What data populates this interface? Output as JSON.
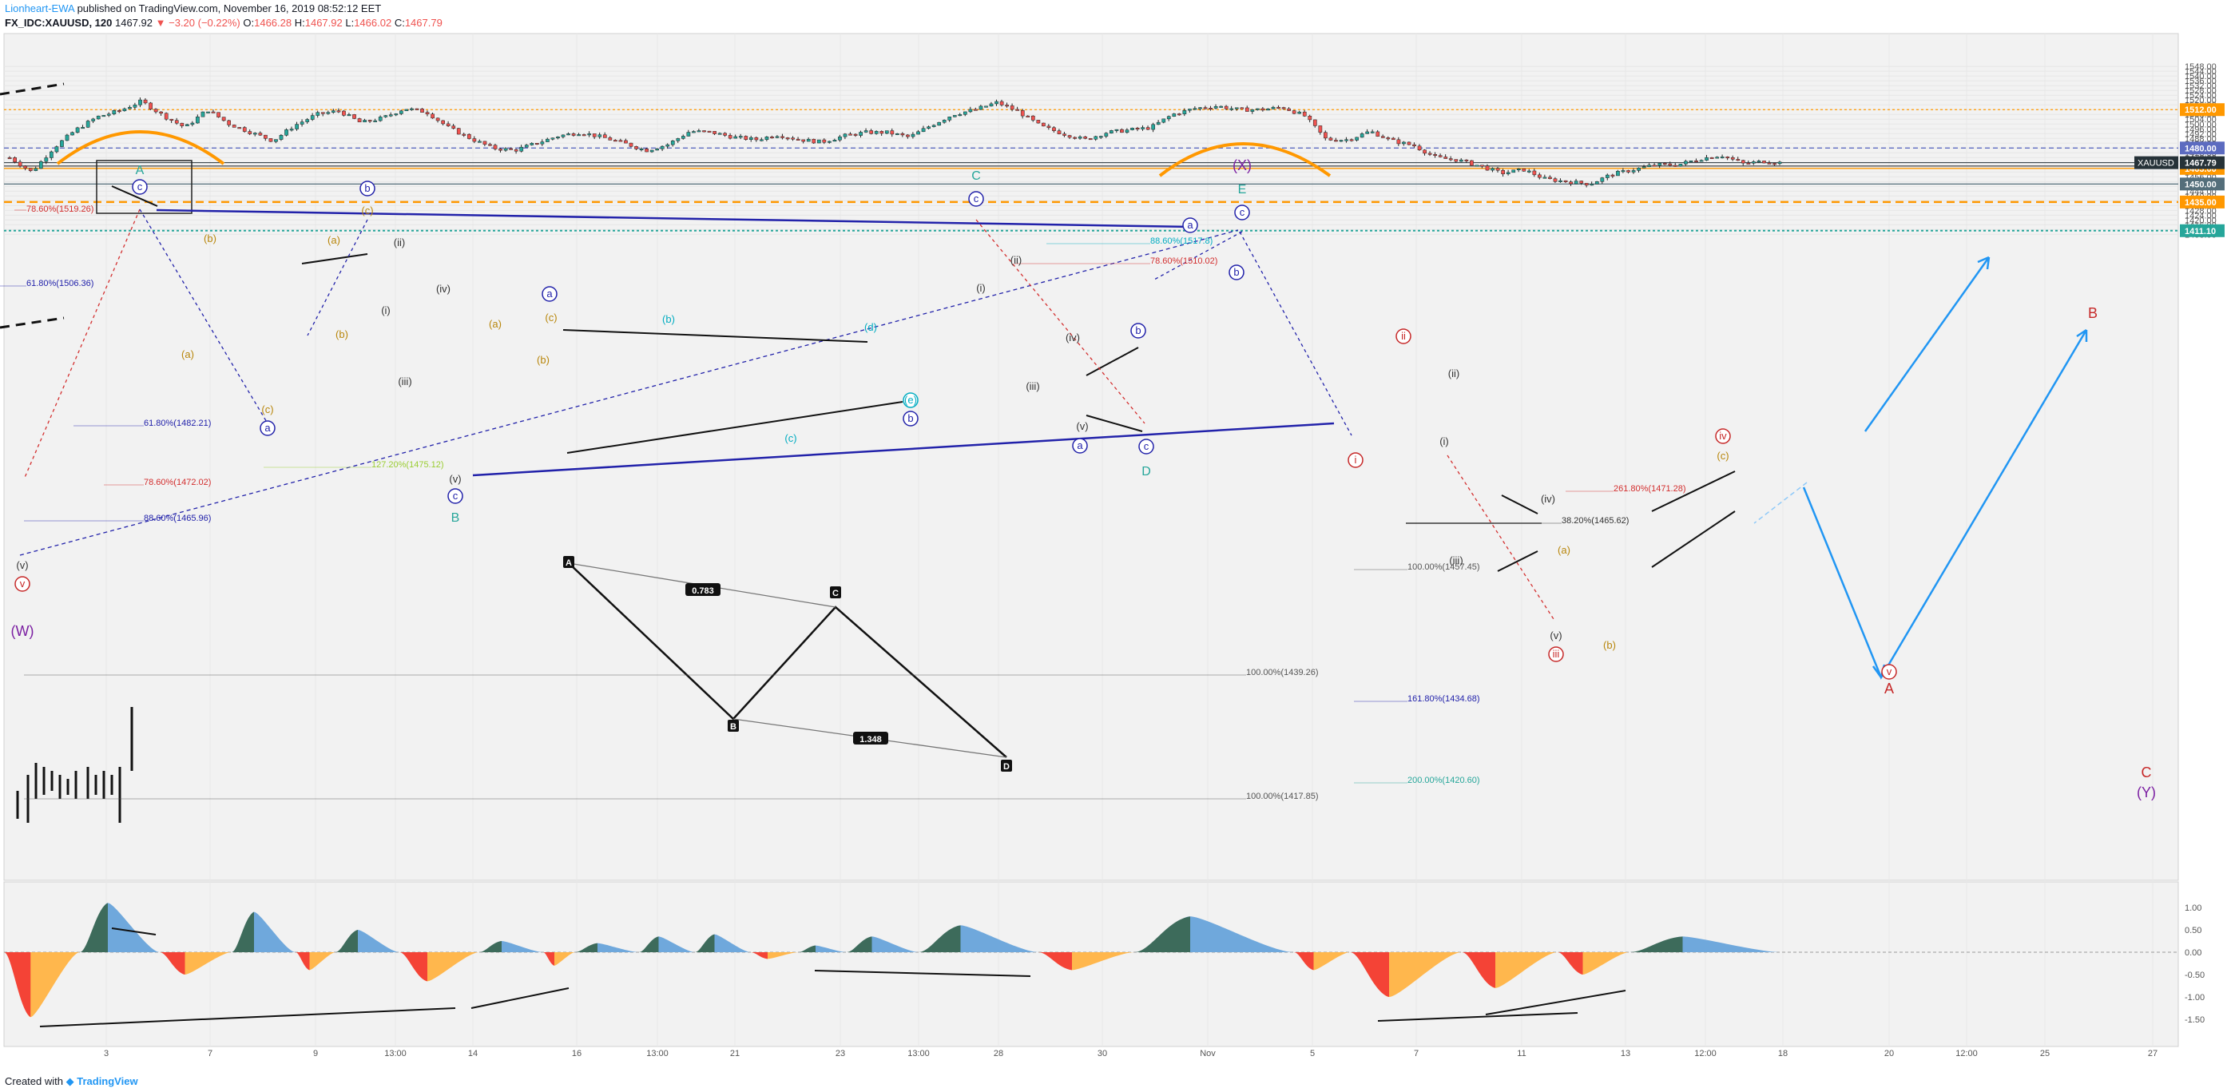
{
  "header": {
    "author": "Lionheart-EWA",
    "published": "published on TradingView.com, November 16, 2019 08:52:12 EET",
    "symbol": "FX_IDC:XAUUSD, 120",
    "last": "1467.92",
    "change": "−3.20 (−0.22%)",
    "o_label": "O:",
    "o": "1466.28",
    "h_label": "H:",
    "h": "1467.92",
    "l_label": "L:",
    "l": "1466.02",
    "c_label": "C:",
    "c": "1467.79"
  },
  "footer": {
    "created": "Created with",
    "brand": "TradingView"
  },
  "colors": {
    "up": "#26a69a",
    "down": "#ef5350",
    "osc_green": "#3d6b5b",
    "osc_blue": "#6fa8dc",
    "osc_red": "#f44336",
    "osc_orange": "#ffb74d",
    "navy": "#2222aa",
    "orange": "#ff9800",
    "blue_arrow": "#2196f3",
    "purple": "#7b1fa2",
    "teal": "#26a69a",
    "wave_red": "#c62828",
    "wave_brown": "#b8860b"
  },
  "chart_data": [
    {
      "type": "candlestick",
      "symbol": "XAUUSD",
      "timeframe": "120",
      "ylim": [
        1404,
        1548
      ],
      "yticks": [
        1408.0,
        1412.0,
        1416.0,
        1420.0,
        1424.0,
        1428.0,
        1432.0,
        1436.0,
        1440.0,
        1444.0,
        1448.0,
        1452.0,
        1456.0,
        1460.0,
        1464.0,
        1468.0,
        1472.0,
        1476.0,
        1480.0,
        1484.0,
        1488.0,
        1492.0,
        1496.0,
        1500.0,
        1504.0,
        1508.0,
        1512.0,
        1516.0,
        1520.0,
        1524.0,
        1528.0,
        1532.0,
        1536.0,
        1540.0,
        1544.0,
        1548.0
      ],
      "xticks": [
        "3",
        "7",
        "9",
        "13:00",
        "14",
        "16",
        "13:00",
        "21",
        "23",
        "13:00",
        "28",
        "30",
        "Nov",
        "5",
        "7",
        "11",
        "13",
        "12:00",
        "18",
        "20",
        "12:00",
        "25",
        "27"
      ],
      "price_path": [
        [
          0,
          1472
        ],
        [
          3,
          1460
        ],
        [
          6,
          1480
        ],
        [
          9,
          1495
        ],
        [
          12,
          1506
        ],
        [
          15,
          1511
        ],
        [
          18,
          1519
        ],
        [
          21,
          1507
        ],
        [
          24,
          1497
        ],
        [
          27,
          1512
        ],
        [
          30,
          1500
        ],
        [
          33,
          1493
        ],
        [
          36,
          1486
        ],
        [
          39,
          1499
        ],
        [
          42,
          1508
        ],
        [
          45,
          1511
        ],
        [
          48,
          1501
        ],
        [
          51,
          1505
        ],
        [
          54,
          1513
        ],
        [
          57,
          1510
        ],
        [
          60,
          1497
        ],
        [
          63,
          1488
        ],
        [
          66,
          1480
        ],
        [
          69,
          1478
        ],
        [
          72,
          1484
        ],
        [
          75,
          1490
        ],
        [
          78,
          1493
        ],
        [
          81,
          1489
        ],
        [
          84,
          1484
        ],
        [
          87,
          1478
        ],
        [
          90,
          1483
        ],
        [
          93,
          1494
        ],
        [
          96,
          1493
        ],
        [
          99,
          1489
        ],
        [
          102,
          1487
        ],
        [
          105,
          1491
        ],
        [
          108,
          1487
        ],
        [
          111,
          1485
        ],
        [
          114,
          1490
        ],
        [
          117,
          1493
        ],
        [
          120,
          1493
        ],
        [
          123,
          1489
        ],
        [
          126,
          1499
        ],
        [
          129,
          1508
        ],
        [
          132,
          1512
        ],
        [
          135,
          1518
        ],
        [
          138,
          1510
        ],
        [
          141,
          1498
        ],
        [
          144,
          1492
        ],
        [
          147,
          1487
        ],
        [
          150,
          1493
        ],
        [
          153,
          1495
        ],
        [
          156,
          1497
        ],
        [
          159,
          1508
        ],
        [
          162,
          1513
        ],
        [
          165,
          1515
        ],
        [
          168,
          1512
        ],
        [
          171,
          1512
        ],
        [
          174,
          1514
        ],
        [
          177,
          1507
        ],
        [
          180,
          1487
        ],
        [
          183,
          1487
        ],
        [
          186,
          1494
        ],
        [
          189,
          1486
        ],
        [
          192,
          1482
        ],
        [
          195,
          1472
        ],
        [
          198,
          1470
        ],
        [
          201,
          1465
        ],
        [
          204,
          1459
        ],
        [
          207,
          1462
        ],
        [
          210,
          1454
        ],
        [
          213,
          1452
        ],
        [
          216,
          1450
        ],
        [
          219,
          1458
        ],
        [
          222,
          1462
        ],
        [
          225,
          1466
        ],
        [
          228,
          1466
        ],
        [
          231,
          1471
        ],
        [
          234,
          1474
        ],
        [
          237,
          1467
        ],
        [
          240,
          1469
        ],
        [
          242,
          1467.79
        ]
      ],
      "horizontal_levels": [
        {
          "value": "1512.00",
          "color": "#ff9800",
          "style": "dashed-thin"
        },
        {
          "value": "1480.00",
          "color": "#5c6bc0",
          "style": "dashed"
        },
        {
          "value": "1465.00",
          "color": "#555555",
          "style": "solid"
        },
        {
          "value": "1463.00",
          "color": "#ff9800",
          "style": "solid"
        },
        {
          "value": "1450.00",
          "color": "#546e7a",
          "style": "solid"
        },
        {
          "value": "1435.00",
          "color": "#ff9800",
          "style": "dashed-bold"
        },
        {
          "value": "1411.10",
          "color": "#26a69a",
          "style": "dotted"
        }
      ],
      "last_price_tag": {
        "label": "XAUUSD",
        "value": "1467.79"
      },
      "fib_labels": [
        "78.60%(1519.26)",
        "61.80%(1506.36)",
        "61.80%(1482.21)",
        "78.60%(1472.02)",
        "88.60%(1465.96)",
        "127.20%(1475.12)",
        "88.60%(1517.8)",
        "78.60%(1510.02)",
        "261.80%(1471.28)",
        "38.20%(1465.62)",
        "100.00%(1457.45)",
        "100.00%(1439.26)",
        "161.80%(1434.68)",
        "200.00%(1420.60)",
        "100.00%(1417.85)"
      ],
      "wave_labels": [
        "A",
        "c",
        "(b)",
        "(a)",
        "(c)",
        "a",
        "b",
        "(a)",
        "(b)",
        "(c)",
        "(i)",
        "(ii)",
        "(iii)",
        "(iv)",
        "(v)",
        "c",
        "B",
        "a",
        "(c)",
        "(b)",
        "(a)",
        "(b)",
        "(c)",
        "(d)",
        "(e)",
        "b",
        "C",
        "c",
        "(i)",
        "(ii)",
        "(iii)",
        "(iv)",
        "(v)",
        "a",
        "b",
        "c",
        "D",
        "(X)",
        "E",
        "c",
        "a",
        "b",
        "ii",
        "i",
        "(i)",
        "(ii)",
        "(iii)",
        "(iv)",
        "(v)",
        "(a)",
        "iii",
        "(b)",
        "(c)",
        "iv",
        "v",
        "A",
        "B",
        "C",
        "(Y)",
        "(W)",
        "v",
        "(v)"
      ],
      "harmonic": {
        "points": [
          "A",
          "B",
          "C",
          "D"
        ],
        "ratios": [
          "0.783",
          "1.348"
        ]
      }
    },
    {
      "type": "area",
      "name": "oscillator",
      "ylim": [
        -1.75,
        1.25
      ],
      "yticks": [
        "1.00",
        "0.50",
        "0.00",
        "-0.50",
        "-1.00",
        "-1.50"
      ]
    }
  ]
}
